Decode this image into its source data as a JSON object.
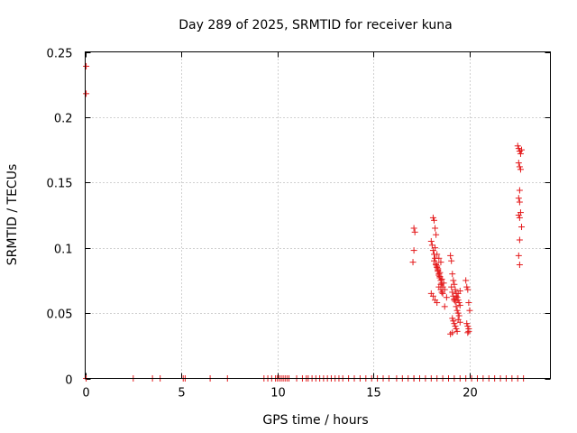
{
  "chart_data": {
    "type": "scatter",
    "title": "Day 289 of 2025, SRMTID for receiver kuna",
    "xlabel": "GPS time / hours",
    "ylabel": "SRMTID / TECUs",
    "xlim": [
      0,
      24.2
    ],
    "ylim": [
      0,
      0.25
    ],
    "xticks": [
      0,
      5,
      10,
      15,
      20
    ],
    "xtick_labels": [
      "0",
      "5",
      "10",
      "15",
      "20"
    ],
    "yticks": [
      0,
      0.05,
      0.1,
      0.15,
      0.2,
      0.25
    ],
    "ytick_labels": [
      "0",
      "0.05",
      "0.1",
      "0.15",
      "0.2",
      "0.25"
    ],
    "grid": true,
    "marker": "+",
    "color": "#e41a1c",
    "series": [
      {
        "name": "SRMTID",
        "x": [
          0.05,
          0.05,
          0.05,
          2.5,
          3.5,
          3.9,
          5.1,
          5.2,
          6.5,
          7.4,
          9.3,
          9.5,
          9.7,
          9.9,
          10.0,
          10.1,
          10.2,
          10.3,
          10.4,
          10.5,
          10.6,
          11.0,
          11.3,
          11.5,
          11.6,
          11.8,
          12.0,
          12.2,
          12.4,
          12.6,
          12.8,
          13.0,
          13.2,
          13.4,
          13.7,
          14.0,
          14.3,
          14.6,
          14.9,
          15.2,
          15.5,
          15.8,
          16.2,
          16.5,
          16.8,
          17.1,
          17.4,
          17.7,
          18.0,
          18.3,
          18.6,
          18.9,
          19.2,
          19.5,
          19.8,
          20.1,
          20.4,
          20.7,
          21.0,
          21.3,
          21.6,
          21.9,
          22.2,
          22.5,
          22.8,
          17.1,
          17.15,
          17.1,
          17.05,
          17.1,
          18.0,
          18.05,
          18.1,
          18.15,
          18.2,
          18.25,
          18.3,
          18.35,
          18.4,
          18.45,
          18.5,
          18.55,
          18.6,
          18.7,
          18.8,
          18.1,
          18.15,
          18.2,
          18.25,
          18.3,
          18.35,
          18.4,
          18.45,
          18.5,
          18.55,
          18.0,
          18.1,
          18.2,
          18.3,
          18.4,
          18.5,
          18.6,
          18.7,
          18.15,
          18.25,
          18.35,
          18.45,
          18.55,
          18.65,
          18.2,
          18.3,
          18.4,
          18.5,
          19.0,
          19.05,
          19.1,
          19.15,
          19.2,
          19.25,
          19.3,
          19.35,
          19.4,
          19.45,
          19.5,
          19.05,
          19.1,
          19.15,
          19.2,
          19.25,
          19.3,
          19.35,
          19.4,
          19.45,
          19.1,
          19.15,
          19.2,
          19.25,
          19.3,
          19.35,
          19.4,
          19.5,
          19.0,
          19.1,
          19.2,
          19.3,
          19.4,
          19.5,
          19.8,
          19.85,
          19.9,
          19.95,
          20.0,
          19.85,
          19.9,
          19.95,
          19.9,
          19.95,
          22.5,
          22.55,
          22.6,
          22.65,
          22.7,
          22.55,
          22.6,
          22.65,
          22.6,
          22.55,
          22.6,
          22.65,
          22.55,
          22.6,
          22.7,
          22.6,
          22.55,
          22.6
        ],
        "y": [
          0.239,
          0.218,
          0.0,
          0,
          0,
          0,
          0,
          0,
          0,
          0,
          0,
          0,
          0,
          0,
          0,
          0,
          0,
          0,
          0,
          0,
          0,
          0,
          0,
          0,
          0,
          0,
          0,
          0,
          0,
          0,
          0,
          0,
          0,
          0,
          0,
          0,
          0,
          0,
          0,
          0,
          0,
          0,
          0,
          0,
          0,
          0,
          0,
          0,
          0,
          0,
          0,
          0,
          0,
          0,
          0,
          0,
          0,
          0,
          0,
          0,
          0,
          0,
          0,
          0,
          0,
          0.115,
          0.112,
          0.098,
          0.089,
          0.0,
          0.105,
          0.102,
          0.098,
          0.095,
          0.092,
          0.088,
          0.085,
          0.082,
          0.08,
          0.078,
          0.075,
          0.073,
          0.07,
          0.068,
          0.062,
          0.123,
          0.121,
          0.115,
          0.11,
          0.086,
          0.083,
          0.079,
          0.077,
          0.072,
          0.066,
          0.065,
          0.063,
          0.06,
          0.058,
          0.07,
          0.068,
          0.065,
          0.055,
          0.09,
          0.087,
          0.084,
          0.081,
          0.076,
          0.073,
          0.1,
          0.095,
          0.092,
          0.089,
          0.094,
          0.09,
          0.08,
          0.075,
          0.072,
          0.068,
          0.065,
          0.062,
          0.06,
          0.058,
          0.056,
          0.07,
          0.066,
          0.063,
          0.061,
          0.059,
          0.055,
          0.052,
          0.05,
          0.048,
          0.046,
          0.044,
          0.042,
          0.04,
          0.038,
          0.036,
          0.045,
          0.043,
          0.034,
          0.035,
          0.06,
          0.063,
          0.065,
          0.067,
          0.075,
          0.07,
          0.068,
          0.058,
          0.052,
          0.042,
          0.04,
          0.038,
          0.035,
          0.036,
          0.178,
          0.176,
          0.174,
          0.172,
          0.175,
          0.165,
          0.162,
          0.16,
          0.144,
          0.138,
          0.135,
          0.127,
          0.125,
          0.123,
          0.116,
          0.106,
          0.094,
          0.087
        ]
      }
    ]
  }
}
